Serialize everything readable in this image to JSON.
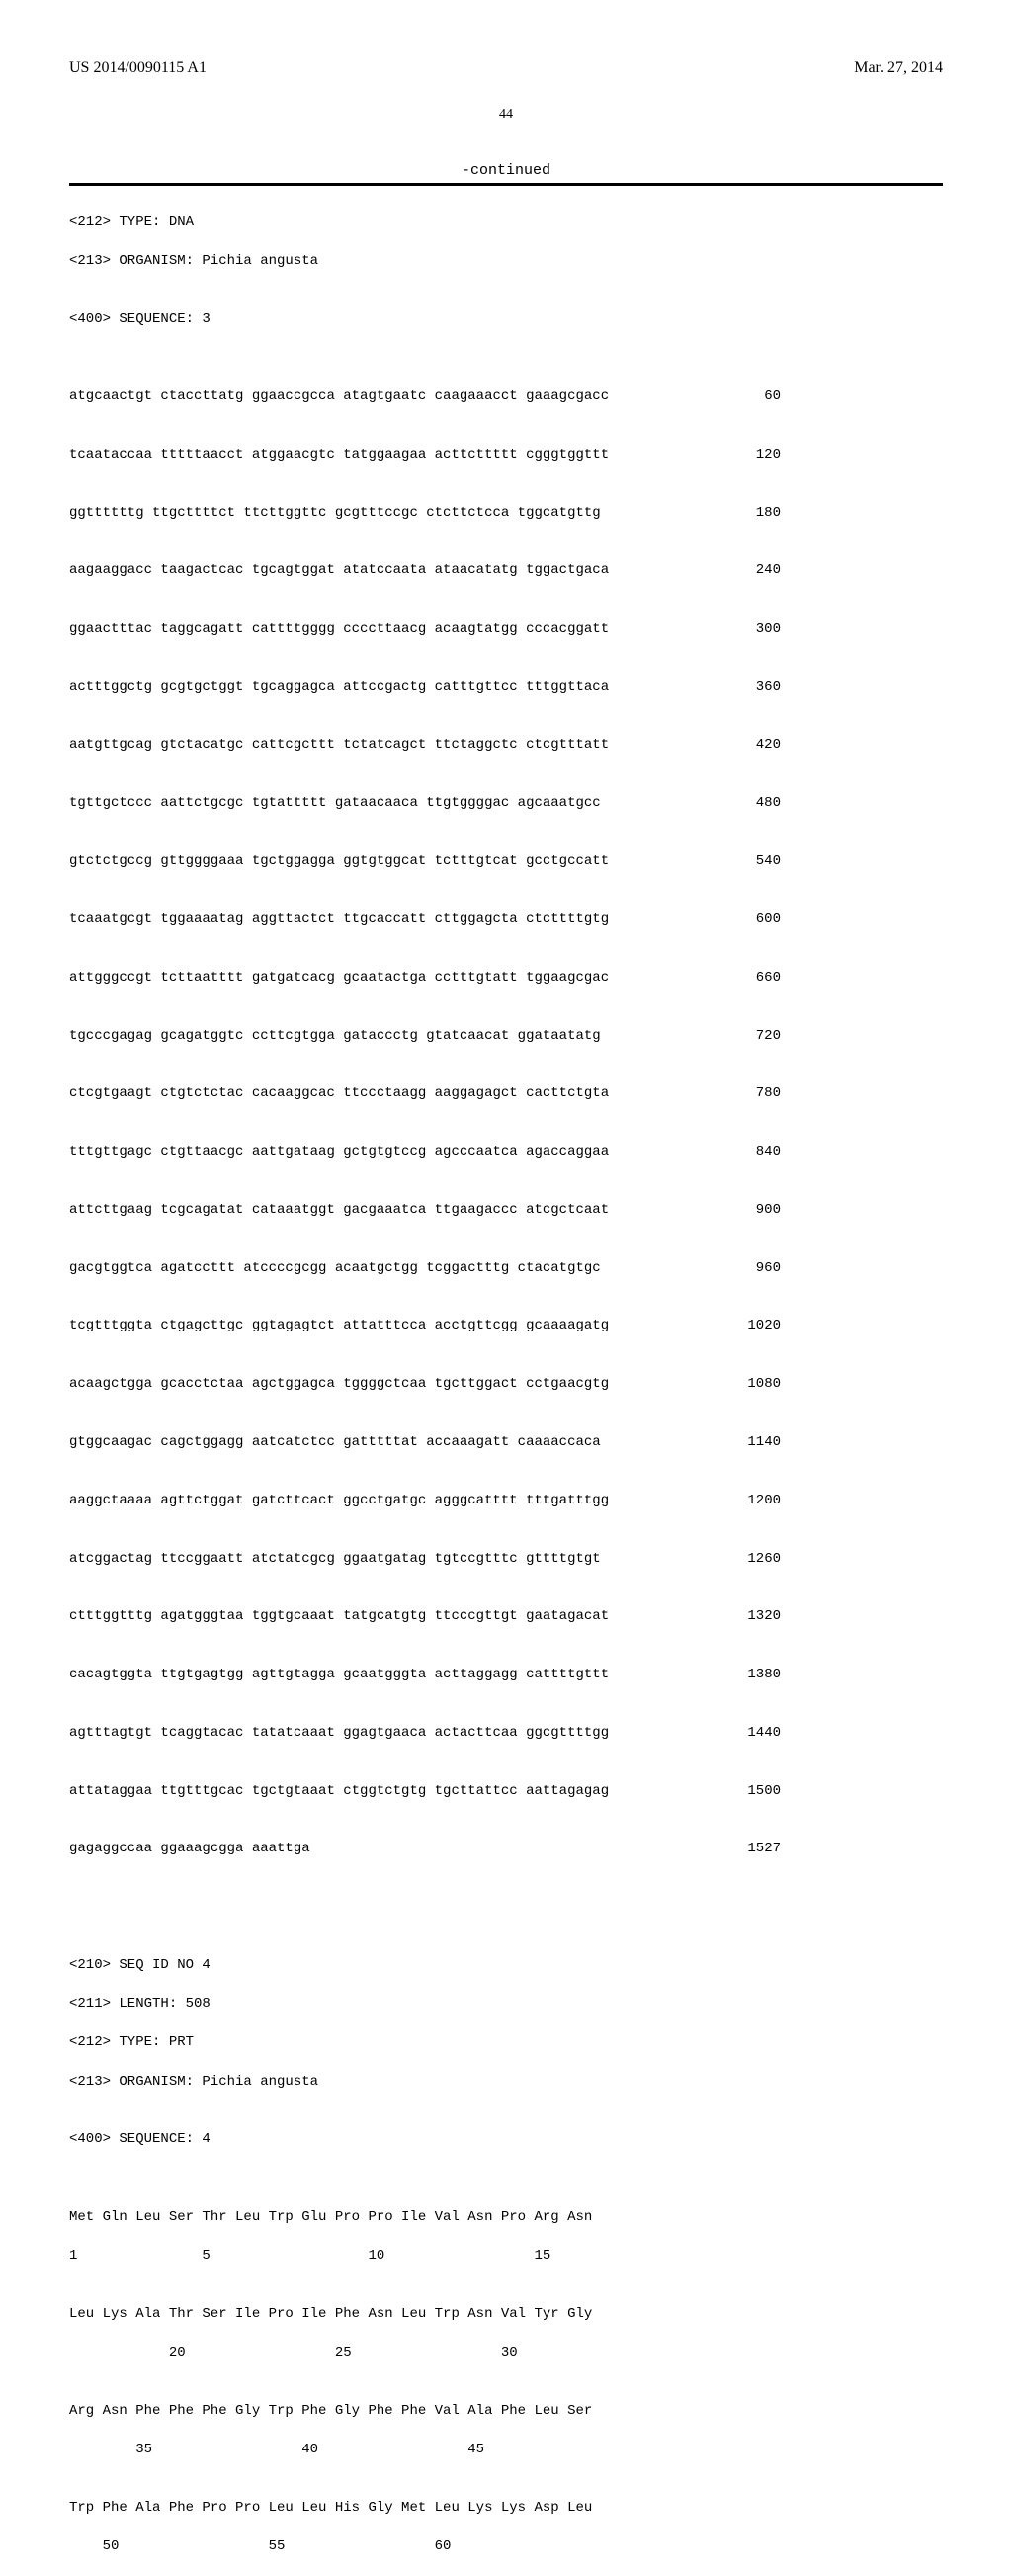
{
  "header": {
    "publication_number": "US 2014/0090115 A1",
    "publication_date": "Mar. 27, 2014"
  },
  "page_number": "44",
  "continued_label": "-continued",
  "seq3_meta": [
    "<212> TYPE: DNA",
    "<213> ORGANISM: Pichia angusta",
    "",
    "<400> SEQUENCE: 3"
  ],
  "seq3_rows": [
    {
      "s": "atgcaactgt ctaccttatg ggaaccgcca atagtgaatc caagaaacct gaaagcgacc",
      "n": "60"
    },
    {
      "s": "tcaataccaa tttttaacct atggaacgtc tatggaagaa acttcttttt cgggtggttt",
      "n": "120"
    },
    {
      "s": "ggttttttg ttgcttttct ttcttggttc gcgtttccgc ctcttctcca tggcatgttg",
      "n": "180"
    },
    {
      "s": "aagaaggacc taagactcac tgcagtggat atatccaata ataacatatg tggactgaca",
      "n": "240"
    },
    {
      "s": "ggaactttac taggcagatt cattttgggg ccccttaacg acaagtatgg cccacggatt",
      "n": "300"
    },
    {
      "s": "actttggctg gcgtgctggt tgcaggagca attccgactg catttgttcc tttggttaca",
      "n": "360"
    },
    {
      "s": "aatgttgcag gtctacatgc cattcgcttt tctatcagct ttctaggctc ctcgtttatt",
      "n": "420"
    },
    {
      "s": "tgttgctccc aattctgcgc tgtattttt gataacaaca ttgtggggac agcaaatgcc",
      "n": "480"
    },
    {
      "s": "gtctctgccg gttggggaaa tgctggagga ggtgtggcat tctttgtcat gcctgccatt",
      "n": "540"
    },
    {
      "s": "tcaaatgcgt tggaaaatag aggttactct ttgcaccatt cttggagcta ctcttttgtg",
      "n": "600"
    },
    {
      "s": "attgggccgt tcttaatttt gatgatcacg gcaatactga cctttgtatt tggaagcgac",
      "n": "660"
    },
    {
      "s": "tgcccgagag gcagatggtc ccttcgtgga gataccctg gtatcaacat ggataatatg",
      "n": "720"
    },
    {
      "s": "ctcgtgaagt ctgtctctac cacaaggcac ttccctaagg aaggagagct cacttctgta",
      "n": "780"
    },
    {
      "s": "tttgttgagc ctgttaacgc aattgataag gctgtgtccg agcccaatca agaccaggaa",
      "n": "840"
    },
    {
      "s": "attcttgaag tcgcagatat cataaatggt gacgaaatca ttgaagaccc atcgctcaat",
      "n": "900"
    },
    {
      "s": "gacgtggtca agatccttt atccccgcgg acaatgctgg tcggactttg ctacatgtgc",
      "n": "960"
    },
    {
      "s": "tcgtttggta ctgagcttgc ggtagagtct attatttcca acctgttcgg gcaaaagatg",
      "n": "1020"
    },
    {
      "s": "acaagctgga gcacctctaa agctggagca tggggctcaa tgcttggact cctgaacgtg",
      "n": "1080"
    },
    {
      "s": "gtggcaagac cagctggagg aatcatctcc gatttttat accaaagatt caaaaccaca",
      "n": "1140"
    },
    {
      "s": "aaggctaaaa agttctggat gatcttcact ggcctgatgc agggcatttt tttgatttgg",
      "n": "1200"
    },
    {
      "s": "atcggactag ttccggaatt atctatcgcg ggaatgatag tgtccgtttc gttttgtgt",
      "n": "1260"
    },
    {
      "s": "ctttggtttg agatgggtaa tggtgcaaat tatgcatgtg ttcccgttgt gaatagacat",
      "n": "1320"
    },
    {
      "s": "cacagtggta ttgtgagtgg agttgtagga gcaatgggta acttaggagg cattttgttt",
      "n": "1380"
    },
    {
      "s": "agtttagtgt tcaggtacac tatatcaaat ggagtgaaca actacttcaa ggcgttttgg",
      "n": "1440"
    },
    {
      "s": "attataggaa ttgtttgcac tgctgtaaat ctggtctgtg tgcttattcc aattagagag",
      "n": "1500"
    },
    {
      "s": "gagaggccaa ggaaagcgga aaattga",
      "n": "1527"
    }
  ],
  "seq4_meta": [
    "<210> SEQ ID NO 4",
    "<211> LENGTH: 508",
    "<212> TYPE: PRT",
    "<213> ORGANISM: Pichia angusta",
    "",
    "<400> SEQUENCE: 4"
  ],
  "seq4_rows": [
    {
      "s": "Met Gln Leu Ser Thr Leu Trp Glu Pro Pro Ile Val Asn Pro Arg Asn"
    },
    {
      "s": "1               5                   10                  15"
    },
    {
      "s": ""
    },
    {
      "s": "Leu Lys Ala Thr Ser Ile Pro Ile Phe Asn Leu Trp Asn Val Tyr Gly"
    },
    {
      "s": "            20                  25                  30"
    },
    {
      "s": ""
    },
    {
      "s": "Arg Asn Phe Phe Phe Gly Trp Phe Gly Phe Phe Val Ala Phe Leu Ser"
    },
    {
      "s": "        35                  40                  45"
    },
    {
      "s": ""
    },
    {
      "s": "Trp Phe Ala Phe Pro Pro Leu Leu His Gly Met Leu Lys Lys Asp Leu"
    },
    {
      "s": "    50                  55                  60"
    }
  ]
}
